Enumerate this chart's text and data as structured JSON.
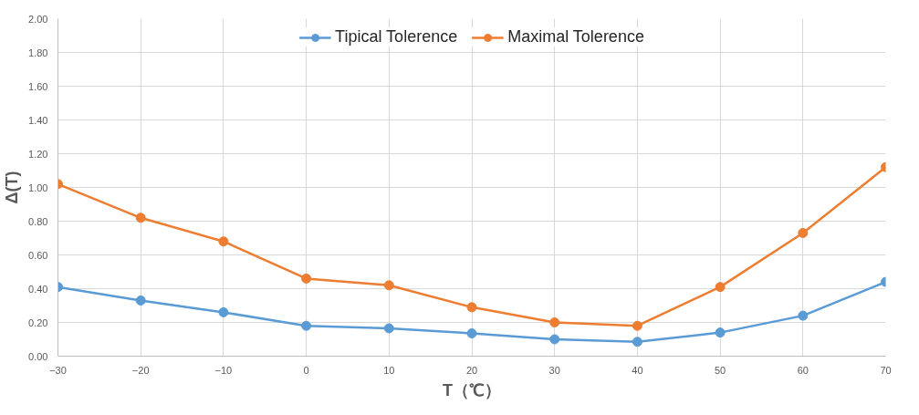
{
  "chart_data": {
    "type": "line",
    "xlabel": "T（℃）",
    "ylabel": "Δ(T)",
    "x": [
      -30,
      -20,
      -10,
      0,
      10,
      20,
      30,
      40,
      50,
      60,
      70
    ],
    "series": [
      {
        "name": "Tipical Tolerence",
        "color": "#5b9bd5",
        "values": [
          0.41,
          0.33,
          0.26,
          0.18,
          0.165,
          0.135,
          0.1,
          0.085,
          0.14,
          0.24,
          0.44
        ]
      },
      {
        "name": "Maximal Tolerence",
        "color": "#ed7d31",
        "values": [
          1.02,
          0.82,
          0.68,
          0.46,
          0.42,
          0.29,
          0.2,
          0.18,
          0.41,
          0.73,
          1.12
        ]
      }
    ],
    "xlim": [
      -30,
      70
    ],
    "xticks": [
      -30,
      -20,
      -10,
      0,
      10,
      20,
      30,
      40,
      50,
      60,
      70
    ],
    "ylim": [
      0,
      2
    ],
    "yticks": [
      {
        "value": 0,
        "label": "0.00"
      },
      {
        "value": 0.2,
        "label": "0.20"
      },
      {
        "value": 0.4,
        "label": "0.40"
      },
      {
        "value": 0.6,
        "label": "0.60"
      },
      {
        "value": 0.8,
        "label": "0.80"
      },
      {
        "value": 1.0,
        "label": "1.00"
      },
      {
        "value": 1.2,
        "label": "1.20"
      },
      {
        "value": 1.4,
        "label": "1.40"
      },
      {
        "value": 1.6,
        "label": "1.60"
      },
      {
        "value": 1.8,
        "label": "1.80"
      },
      {
        "value": 2.0,
        "label": "2.00"
      }
    ],
    "grid": true,
    "legend": "top",
    "marker": "circle",
    "line_style": "solid"
  }
}
